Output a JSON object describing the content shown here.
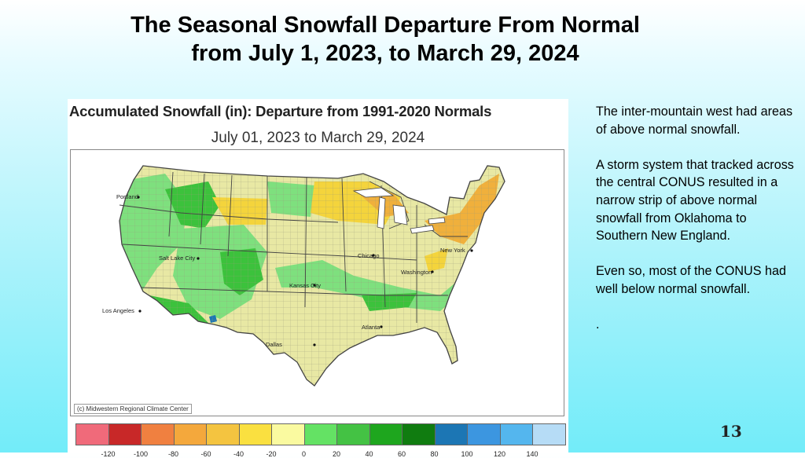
{
  "slide": {
    "title_line1": "The Seasonal Snowfall Departure From Normal",
    "title_line2": "from July 1, 2023, to March 29, 2024",
    "page_number": "13"
  },
  "map": {
    "title": "Accumulated Snowfall (in): Departure from 1991-2020 Normals",
    "subtitle": "July 01, 2023 to March 29, 2024",
    "credit": "(c) Midwestern Regional Climate Center",
    "cities": [
      {
        "name": "Portland"
      },
      {
        "name": "Salt Lake City"
      },
      {
        "name": "Los Angeles"
      },
      {
        "name": "Kansas City"
      },
      {
        "name": "Chicago"
      },
      {
        "name": "Washington"
      },
      {
        "name": "New York"
      },
      {
        "name": "Atlanta"
      },
      {
        "name": "Dallas"
      }
    ],
    "colors": {
      "land_below": "#e8e8a4",
      "county_lines": "#9c9c7a",
      "state_lines": "#333333",
      "above_light": "#7ee07e",
      "above_mid": "#3cc23c",
      "above_dark": "#1c8a2c",
      "below_orange": "#f0b03c",
      "below_gold": "#f4d43c"
    },
    "legend": {
      "colors": [
        "#f06a7a",
        "#c82828",
        "#f08040",
        "#f4a83c",
        "#f4c440",
        "#fae040",
        "#fafaa0",
        "#64e264",
        "#44c244",
        "#1ea61e",
        "#107c10",
        "#1c76b4",
        "#3c96e0",
        "#54b6ee",
        "#b6dcf6"
      ],
      "labels": [
        "-120",
        "-100",
        "-80",
        "-60",
        "-40",
        "-20",
        "0",
        "20",
        "40",
        "60",
        "80",
        "100",
        "120",
        "140"
      ]
    }
  },
  "notes": {
    "paragraphs": [
      "The inter-mountain west had areas of above normal snowfall.",
      "A storm system that tracked across the central CONUS resulted in a narrow strip of above normal snowfall from Oklahoma to Southern New England.",
      "Even so, most of the CONUS had well below normal snowfall.",
      "."
    ]
  }
}
